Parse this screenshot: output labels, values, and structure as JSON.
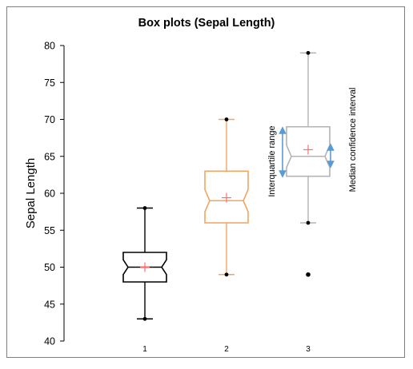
{
  "chart_data": {
    "type": "box",
    "title": "Box plots (Sepal Length)",
    "xlabel": "",
    "ylabel": "Sepal Length",
    "ylim": [
      40,
      80
    ],
    "yticks": [
      40,
      45,
      50,
      55,
      60,
      65,
      70,
      75,
      80
    ],
    "grid": false,
    "categories": [
      "1",
      "2",
      "3"
    ],
    "boxes": [
      {
        "category": "1",
        "whisker_low": 43,
        "q1": 48,
        "median": 50,
        "q3": 52,
        "whisker_high": 58,
        "mean": 50,
        "notch_low": 49,
        "notch_high": 51,
        "outliers": [],
        "color": "#000000"
      },
      {
        "category": "2",
        "whisker_low": 49,
        "q1": 56,
        "median": 59,
        "q3": 63,
        "whisker_high": 70,
        "mean": 59.4,
        "notch_low": 57.5,
        "notch_high": 60.5,
        "outliers": [],
        "color": "#f4a460"
      },
      {
        "category": "3",
        "whisker_low": 56,
        "q1": 62.3,
        "median": 65,
        "q3": 69,
        "whisker_high": 79,
        "mean": 65.9,
        "notch_low": 63.5,
        "notch_high": 66.5,
        "outliers": [
          49
        ],
        "color": "#b4b4b4"
      }
    ],
    "mean_marker_color": "#ff6b6b",
    "annotations": [
      {
        "text": "Interquartile range",
        "arrow_color": "#5b9bd5"
      },
      {
        "text": "Median confidence interval",
        "arrow_color": "#5b9bd5"
      }
    ]
  }
}
